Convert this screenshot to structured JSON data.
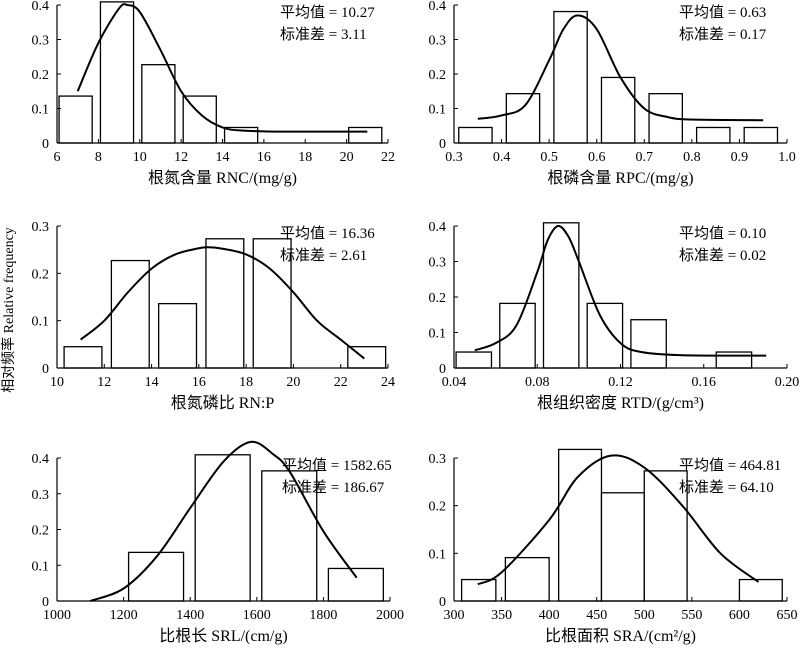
{
  "figure": {
    "ylabel": "相对频率 Relative frequency"
  },
  "chart_data": [
    {
      "type": "bar",
      "xlabel": "根氮含量 RNC/(mg/g)",
      "ylabel": "相对频率 Relative frequency",
      "xlim": [
        6,
        22
      ],
      "ylim": [
        0,
        0.4
      ],
      "xticks": [
        "6",
        "8",
        "10",
        "12",
        "14",
        "16",
        "18",
        "20",
        "22"
      ],
      "xtick_values": [
        6,
        8,
        10,
        12,
        14,
        16,
        18,
        20,
        22
      ],
      "yticks": [
        "0",
        "0.1",
        "0.2",
        "0.3",
        "0.4"
      ],
      "ytick_values": [
        0,
        0.1,
        0.2,
        0.3,
        0.4
      ],
      "bars": [
        {
          "x0": 6.1,
          "x1": 7.7,
          "value": 0.136
        },
        {
          "x0": 8.1,
          "x1": 9.7,
          "value": 0.409
        },
        {
          "x0": 10.1,
          "x1": 11.7,
          "value": 0.227
        },
        {
          "x0": 12.1,
          "x1": 13.7,
          "value": 0.136
        },
        {
          "x0": 14.1,
          "x1": 15.7,
          "value": 0.045
        },
        {
          "x0": 20.1,
          "x1": 21.7,
          "value": 0.045
        }
      ],
      "curve": [
        [
          7,
          0.15
        ],
        [
          8,
          0.29
        ],
        [
          9,
          0.39
        ],
        [
          9.4,
          0.4
        ],
        [
          10,
          0.38
        ],
        [
          11,
          0.27
        ],
        [
          12,
          0.15
        ],
        [
          13,
          0.08
        ],
        [
          14,
          0.045
        ],
        [
          15,
          0.036
        ],
        [
          17,
          0.033
        ],
        [
          21,
          0.033
        ]
      ],
      "annotation": {
        "mean_label": "平均值",
        "mean": "10.27",
        "sd_label": "标准差",
        "sd": "3.11"
      }
    },
    {
      "type": "bar",
      "xlabel": "根磷含量 RPC/(mg/g)",
      "ylabel": "相对频率 Relative frequency",
      "xlim": [
        0.3,
        1.0
      ],
      "ylim": [
        0,
        0.4
      ],
      "xticks": [
        "0.3",
        "0.4",
        "0.5",
        "0.6",
        "0.7",
        "0.8",
        "0.9",
        "1.0"
      ],
      "xtick_values": [
        0.3,
        0.4,
        0.5,
        0.6,
        0.7,
        0.8,
        0.9,
        1.0
      ],
      "yticks": [
        "0",
        "0.1",
        "0.2",
        "0.3",
        "0.4"
      ],
      "ytick_values": [
        0,
        0.1,
        0.2,
        0.3,
        0.4
      ],
      "bars": [
        {
          "x0": 0.31,
          "x1": 0.38,
          "value": 0.045
        },
        {
          "x0": 0.41,
          "x1": 0.48,
          "value": 0.143
        },
        {
          "x0": 0.51,
          "x1": 0.58,
          "value": 0.381
        },
        {
          "x0": 0.61,
          "x1": 0.68,
          "value": 0.19
        },
        {
          "x0": 0.71,
          "x1": 0.78,
          "value": 0.143
        },
        {
          "x0": 0.81,
          "x1": 0.88,
          "value": 0.045
        },
        {
          "x0": 0.91,
          "x1": 0.98,
          "value": 0.045
        }
      ],
      "curve": [
        [
          0.35,
          0.07
        ],
        [
          0.4,
          0.08
        ],
        [
          0.45,
          0.11
        ],
        [
          0.5,
          0.24
        ],
        [
          0.53,
          0.33
        ],
        [
          0.56,
          0.37
        ],
        [
          0.6,
          0.33
        ],
        [
          0.65,
          0.19
        ],
        [
          0.7,
          0.1
        ],
        [
          0.75,
          0.075
        ],
        [
          0.8,
          0.068
        ],
        [
          0.95,
          0.066
        ]
      ],
      "annotation": {
        "mean_label": "平均值",
        "mean": "0.63",
        "sd_label": "标准差",
        "sd": "0.17"
      }
    },
    {
      "type": "bar",
      "xlabel": "根氮磷比 RN:P",
      "ylabel": "相对频率 Relative frequency",
      "xlim": [
        10,
        24
      ],
      "ylim": [
        0,
        0.3
      ],
      "xticks": [
        "10",
        "12",
        "14",
        "16",
        "18",
        "20",
        "22",
        "24"
      ],
      "xtick_values": [
        10,
        12,
        14,
        16,
        18,
        20,
        22,
        24
      ],
      "yticks": [
        "0",
        "0.1",
        "0.2",
        "0.3"
      ],
      "ytick_values": [
        0,
        0.1,
        0.2,
        0.3
      ],
      "bars": [
        {
          "x0": 10.3,
          "x1": 11.9,
          "value": 0.045
        },
        {
          "x0": 12.3,
          "x1": 13.9,
          "value": 0.227
        },
        {
          "x0": 14.3,
          "x1": 15.9,
          "value": 0.136
        },
        {
          "x0": 16.3,
          "x1": 17.9,
          "value": 0.273
        },
        {
          "x0": 18.3,
          "x1": 19.9,
          "value": 0.273
        },
        {
          "x0": 22.3,
          "x1": 23.9,
          "value": 0.045
        }
      ],
      "curve": [
        [
          11,
          0.06
        ],
        [
          12,
          0.1
        ],
        [
          13,
          0.16
        ],
        [
          14,
          0.21
        ],
        [
          15,
          0.24
        ],
        [
          16,
          0.253
        ],
        [
          16.4,
          0.255
        ],
        [
          17,
          0.252
        ],
        [
          18,
          0.24
        ],
        [
          19,
          0.21
        ],
        [
          20,
          0.16
        ],
        [
          21,
          0.1
        ],
        [
          22,
          0.06
        ],
        [
          23,
          0.02
        ]
      ],
      "annotation": {
        "mean_label": "平均值",
        "mean": "16.36",
        "sd_label": "标准差",
        "sd": "2.61"
      }
    },
    {
      "type": "bar",
      "xlabel": "根组织密度 RTD/(g/cm³)",
      "ylabel": "相对频率 Relative frequency",
      "xlim": [
        0.04,
        0.2
      ],
      "ylim": [
        0,
        0.4
      ],
      "xticks": [
        "0.04",
        "0.08",
        "0.12",
        "0.16",
        "0.20"
      ],
      "xtick_values": [
        0.04,
        0.08,
        0.12,
        0.16,
        0.2
      ],
      "yticks": [
        "0",
        "0.1",
        "0.2",
        "0.3",
        "0.4"
      ],
      "ytick_values": [
        0,
        0.1,
        0.2,
        0.3,
        0.4
      ],
      "bars": [
        {
          "x0": 0.041,
          "x1": 0.058,
          "value": 0.045
        },
        {
          "x0": 0.062,
          "x1": 0.079,
          "value": 0.182
        },
        {
          "x0": 0.083,
          "x1": 0.1,
          "value": 0.409
        },
        {
          "x0": 0.104,
          "x1": 0.121,
          "value": 0.182
        },
        {
          "x0": 0.125,
          "x1": 0.142,
          "value": 0.136
        },
        {
          "x0": 0.166,
          "x1": 0.183,
          "value": 0.045
        }
      ],
      "curve": [
        [
          0.05,
          0.05
        ],
        [
          0.06,
          0.07
        ],
        [
          0.07,
          0.12
        ],
        [
          0.08,
          0.27
        ],
        [
          0.085,
          0.36
        ],
        [
          0.09,
          0.4
        ],
        [
          0.095,
          0.37
        ],
        [
          0.1,
          0.3
        ],
        [
          0.11,
          0.15
        ],
        [
          0.12,
          0.07
        ],
        [
          0.13,
          0.045
        ],
        [
          0.15,
          0.036
        ],
        [
          0.19,
          0.035
        ]
      ],
      "annotation": {
        "mean_label": "平均值",
        "mean": "0.10",
        "sd_label": "标准差",
        "sd": "0.02"
      }
    },
    {
      "type": "bar",
      "xlabel": "比根长 SRL/(cm/g)",
      "ylabel": "相对频率 Relative frequency",
      "xlim": [
        1000,
        2000
      ],
      "ylim": [
        0,
        0.4
      ],
      "xticks": [
        "1000",
        "1200",
        "1400",
        "1600",
        "1800",
        "2000"
      ],
      "xtick_values": [
        1000,
        1200,
        1400,
        1600,
        1800,
        2000
      ],
      "yticks": [
        "0",
        "0.1",
        "0.2",
        "0.3",
        "0.4"
      ],
      "ytick_values": [
        0,
        0.1,
        0.2,
        0.3,
        0.4
      ],
      "bars": [
        {
          "x0": 1215,
          "x1": 1380,
          "value": 0.136
        },
        {
          "x0": 1415,
          "x1": 1580,
          "value": 0.409
        },
        {
          "x0": 1615,
          "x1": 1780,
          "value": 0.364
        },
        {
          "x0": 1815,
          "x1": 1980,
          "value": 0.091
        }
      ],
      "curve": [
        [
          1100,
          0.0
        ],
        [
          1200,
          0.035
        ],
        [
          1300,
          0.125
        ],
        [
          1400,
          0.26
        ],
        [
          1500,
          0.39
        ],
        [
          1582,
          0.445
        ],
        [
          1650,
          0.41
        ],
        [
          1700,
          0.36
        ],
        [
          1800,
          0.195
        ],
        [
          1900,
          0.065
        ]
      ],
      "annotation": {
        "mean_label": "平均值",
        "mean": "1582.65",
        "sd_label": "标准差",
        "sd": "186.67"
      }
    },
    {
      "type": "bar",
      "xlabel": "比根面积 SRA/(cm²/g)",
      "ylabel": "相对频率 Relative frequency",
      "xlim": [
        300,
        650
      ],
      "ylim": [
        0,
        0.3
      ],
      "xticks": [
        "300",
        "350",
        "400",
        "450",
        "500",
        "550",
        "600",
        "650"
      ],
      "xtick_values": [
        300,
        350,
        400,
        450,
        500,
        550,
        600,
        650
      ],
      "yticks": [
        "0",
        "0.1",
        "0.2",
        "0.3"
      ],
      "ytick_values": [
        0,
        0.1,
        0.2,
        0.3
      ],
      "bars": [
        {
          "x0": 308,
          "x1": 344,
          "value": 0.045
        },
        {
          "x0": 354,
          "x1": 400,
          "value": 0.091
        },
        {
          "x0": 410,
          "x1": 455,
          "value": 0.318
        },
        {
          "x0": 455,
          "x1": 500,
          "value": 0.227
        },
        {
          "x0": 500,
          "x1": 545,
          "value": 0.273
        },
        {
          "x0": 600,
          "x1": 645,
          "value": 0.045
        }
      ],
      "curve": [
        [
          325,
          0.035
        ],
        [
          350,
          0.06
        ],
        [
          400,
          0.17
        ],
        [
          430,
          0.26
        ],
        [
          465,
          0.305
        ],
        [
          500,
          0.28
        ],
        [
          540,
          0.2
        ],
        [
          580,
          0.1
        ],
        [
          620,
          0.04
        ]
      ],
      "annotation": {
        "mean_label": "平均值",
        "mean": "464.81",
        "sd_label": "标准差",
        "sd": "64.10"
      }
    }
  ]
}
